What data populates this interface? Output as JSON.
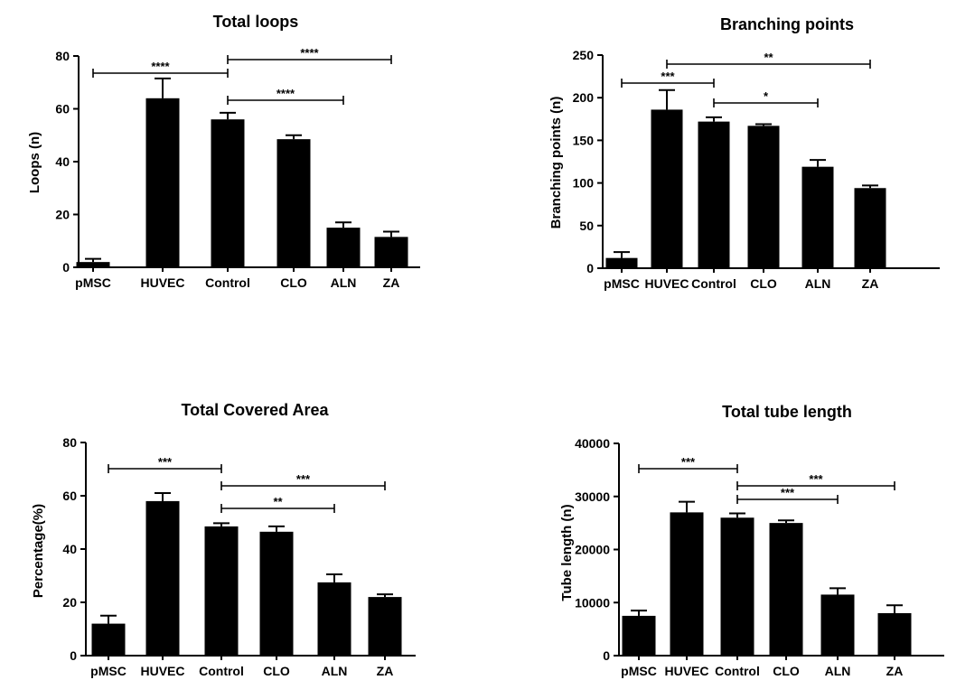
{
  "chart_data": [
    {
      "type": "bar",
      "title": "Total loops",
      "xlabel": "",
      "ylabel": "Loops (n)",
      "categories": [
        "pMSC",
        "HUVEC",
        "Control",
        "CLO",
        "ALN",
        "ZA"
      ],
      "values": [
        2,
        64,
        56,
        48.5,
        15,
        11.5
      ],
      "errors": [
        1.2,
        7.5,
        2.5,
        1.5,
        2,
        2
      ],
      "ylim": [
        0,
        80
      ],
      "yticks": [
        0,
        20,
        40,
        60,
        80
      ],
      "color": "#000000",
      "significance": [
        {
          "from": "pMSC",
          "to": "Control",
          "label": "****"
        },
        {
          "from": "Control",
          "to": "ZA",
          "label": "****"
        },
        {
          "from": "Control",
          "to": "ALN",
          "label": "****"
        }
      ]
    },
    {
      "type": "bar",
      "title": "Branching points",
      "xlabel": "",
      "ylabel": "Branching points (n)",
      "categories": [
        "pMSC",
        "HUVEC",
        "Control",
        "CLO",
        "ALN",
        "ZA"
      ],
      "values": [
        12,
        186,
        172,
        167,
        119,
        94
      ],
      "errors": [
        7,
        23,
        5,
        2,
        8,
        3
      ],
      "ylim": [
        0,
        250
      ],
      "yticks": [
        0,
        50,
        100,
        150,
        200,
        250
      ],
      "color": "#000000",
      "significance": [
        {
          "from": "pMSC",
          "to": "Control",
          "label": "***"
        },
        {
          "from": "HUVEC",
          "to": "ZA",
          "label": "**"
        },
        {
          "from": "Control",
          "to": "ALN",
          "label": "*"
        }
      ]
    },
    {
      "type": "bar",
      "title": "Total Covered Area",
      "xlabel": "",
      "ylabel": "Percentage(%)",
      "categories": [
        "pMSC",
        "HUVEC",
        "Control",
        "CLO",
        "ALN",
        "ZA"
      ],
      "values": [
        12,
        58,
        48.5,
        46.5,
        27.5,
        22
      ],
      "errors": [
        3,
        3,
        1.2,
        2,
        3,
        1
      ],
      "ylim": [
        0,
        80
      ],
      "yticks": [
        0,
        20,
        40,
        60,
        80
      ],
      "color": "#000000",
      "significance": [
        {
          "from": "pMSC",
          "to": "Control",
          "label": "***"
        },
        {
          "from": "Control",
          "to": "ZA",
          "label": "***"
        },
        {
          "from": "Control",
          "to": "ALN",
          "label": "**"
        }
      ]
    },
    {
      "type": "bar",
      "title": "Total tube length",
      "xlabel": "",
      "ylabel": "Tube length (n)",
      "categories": [
        "pMSC",
        "HUVEC",
        "Control",
        "CLO",
        "ALN",
        "ZA"
      ],
      "values": [
        7500,
        27000,
        26000,
        25000,
        11500,
        8000
      ],
      "errors": [
        1000,
        2000,
        800,
        500,
        1200,
        1500
      ],
      "ylim": [
        0,
        40000
      ],
      "yticks": [
        0,
        10000,
        20000,
        30000,
        40000
      ],
      "color": "#000000",
      "significance": [
        {
          "from": "pMSC",
          "to": "Control",
          "label": "***"
        },
        {
          "from": "Control",
          "to": "ZA",
          "label": "***"
        },
        {
          "from": "Control",
          "to": "ALN",
          "label": "***"
        }
      ]
    }
  ]
}
